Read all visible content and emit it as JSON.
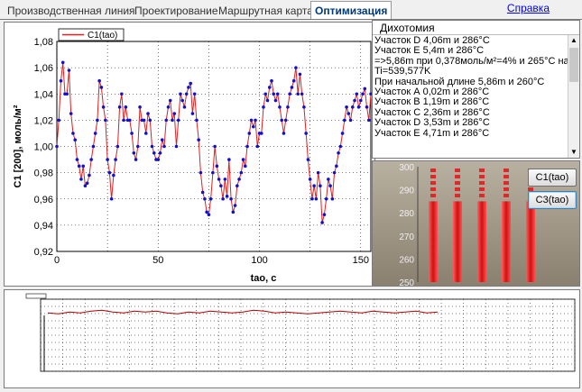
{
  "tabs": [
    {
      "label": "Производственная линия",
      "active": false
    },
    {
      "label": "Проектирование",
      "active": false
    },
    {
      "label": "Маршрутная карта",
      "active": false
    },
    {
      "label": "Оптимизация",
      "active": true
    }
  ],
  "help_link": "Справка",
  "chart_data": [
    {
      "type": "line",
      "legend": "C1(tao)",
      "xlabel": "tao, с",
      "ylabel": "C1 [200], моль/м²",
      "xlim": [
        0,
        155
      ],
      "ylim": [
        0.92,
        1.08
      ],
      "x_ticks": [
        "0",
        "50",
        "100",
        "150"
      ],
      "y_ticks": [
        "0,92",
        "0,94",
        "0,96",
        "0,98",
        "1,00",
        "1,02",
        "1,04",
        "1,06",
        "1,08"
      ],
      "series_color": "#e02020",
      "marker_color": "#1010d0",
      "grid": true,
      "x": [
        0,
        1,
        2,
        3,
        4,
        5,
        6,
        7,
        8,
        9,
        10,
        11,
        12,
        13,
        14,
        15,
        16,
        17,
        18,
        19,
        20,
        21,
        22,
        23,
        24,
        25,
        26,
        27,
        28,
        29,
        30,
        31,
        32,
        33,
        34,
        35,
        36,
        37,
        38,
        39,
        40,
        41,
        42,
        43,
        44,
        45,
        46,
        47,
        48,
        49,
        50,
        51,
        52,
        53,
        54,
        55,
        56,
        57,
        58,
        59,
        60,
        61,
        62,
        63,
        64,
        65,
        66,
        67,
        68,
        69,
        70,
        71,
        72,
        73,
        74,
        75,
        76,
        77,
        78,
        79,
        80,
        81,
        82,
        83,
        84,
        85,
        86,
        87,
        88,
        89,
        90,
        91,
        92,
        93,
        94,
        95,
        96,
        97,
        98,
        99,
        100,
        101,
        102,
        103,
        104,
        105,
        106,
        107,
        108,
        109,
        110,
        111,
        112,
        113,
        114,
        115,
        116,
        117,
        118,
        119,
        120,
        121,
        122,
        123,
        124,
        125,
        126,
        127,
        128,
        129,
        130,
        131,
        132,
        133,
        134,
        135,
        136,
        137,
        138,
        139,
        140,
        141,
        142,
        143,
        144,
        145,
        146,
        147,
        148,
        149,
        150,
        151,
        152,
        153,
        154,
        155
      ],
      "values": [
        1.0,
        1.02,
        1.05,
        1.064,
        1.04,
        1.04,
        1.058,
        1.025,
        1.01,
        1.005,
        0.99,
        0.985,
        0.975,
        0.985,
        0.97,
        0.972,
        0.978,
        0.99,
        1.0,
        1.01,
        1.02,
        1.05,
        1.045,
        1.03,
        1.02,
        0.99,
        0.98,
        0.96,
        0.978,
        0.99,
        1.0,
        1.03,
        1.04,
        1.02,
        1.03,
        1.02,
        1.02,
        1.01,
        0.995,
        0.99,
        1.0,
        1.03,
        1.02,
        1.02,
        1.01,
        1.025,
        1.02,
        1.0,
        0.995,
        0.99,
        0.99,
        0.995,
        1.005,
        1.0,
        1.02,
        1.03,
        1.035,
        1.02,
        1.025,
        1.0,
        1.02,
        1.04,
        1.035,
        1.03,
        1.04,
        1.045,
        1.048,
        1.025,
        1.04,
        1.02,
        1.005,
        0.98,
        0.965,
        0.96,
        0.95,
        0.948,
        0.96,
        0.98,
        1.0,
        0.985,
        0.975,
        0.97,
        0.96,
        0.975,
        0.962,
        0.99,
        0.96,
        0.95,
        0.955,
        0.97,
        0.975,
        0.98,
        0.99,
        0.985,
        1.0,
        1.01,
        1.02,
        1.015,
        1.02,
        1.0,
        1.01,
        1.01,
        1.03,
        1.04,
        1.035,
        1.045,
        1.05,
        1.04,
        1.035,
        1.04,
        1.03,
        1.02,
        1.01,
        1.02,
        1.03,
        1.04,
        1.045,
        1.05,
        1.06,
        1.04,
        1.055,
        1.04,
        1.03,
        1.01,
        0.99,
        0.975,
        0.96,
        0.97,
        0.96,
        0.98,
        0.97,
        0.942,
        0.948,
        0.96,
        0.975,
        0.97,
        0.96,
        0.98,
        0.985,
        0.995,
        1.0,
        1.01,
        1.02,
        1.03,
        1.025,
        1.02,
        1.03,
        1.035,
        1.04,
        1.03,
        1.035,
        1.04,
        1.044,
        1.03,
        1.02,
        1.04
      ]
    },
    {
      "type": "line",
      "legend": "",
      "series_color": "#b00000",
      "baseline_color": "#000000",
      "grid": true,
      "values": [
        0.8,
        0.79,
        0.81,
        0.8,
        0.82,
        0.83,
        0.81,
        0.8,
        0.82,
        0.81,
        0.82,
        0.8,
        0.79,
        0.81,
        0.8,
        0.82,
        0.81,
        0.8,
        0.81,
        0.83,
        0.82,
        0.8,
        0.81,
        0.8,
        0.79,
        0.8,
        0.81,
        0.82,
        0.81,
        0.8,
        0.82,
        0.81,
        0.8,
        0.81,
        0.82,
        0.8,
        0.81
      ]
    },
    {
      "type": "bar",
      "ylim": [
        250,
        300
      ],
      "y_ticks": [
        "300",
        "290",
        "280",
        "270",
        "260",
        "250"
      ],
      "series_color": "#e02828",
      "values": [
        285,
        285,
        285,
        285,
        285
      ]
    }
  ],
  "log_panel": {
    "title": "Дихотомия",
    "lines": [
      "Участок D 4,06m и 286°C",
      "Участок E 5,4m и 286°C",
      "=>5,86m при 0,378моль/м²=4% и 265°C на",
      "Ti=539,577K",
      "При начальной длине 5,86m и 260°C",
      "Участок А 0,02m и 286°C",
      "Участок В 1,19m и 286°C",
      "Участок С 2,36m и 286°C",
      "Участок D 3,53m и 286°C",
      "Участок E 4,71m и 286°C"
    ]
  },
  "buttons": {
    "c1": "C1(tao)",
    "c3": "C3(tao)"
  },
  "colors": {
    "accent": "#003a7a",
    "plot_bg": "#ffffff",
    "tube_gradient_top": "#c8c0b0",
    "tube_gradient_bottom": "#9a9080"
  }
}
